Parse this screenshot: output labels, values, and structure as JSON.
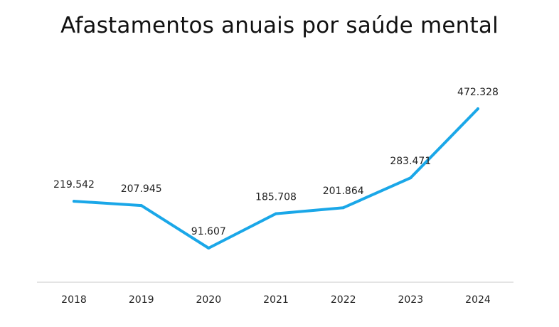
{
  "chart_data": {
    "type": "line",
    "title": "Afastamentos anuais por saúde mental",
    "xlabel": "",
    "ylabel": "",
    "categories": [
      "2018",
      "2019",
      "2020",
      "2021",
      "2022",
      "2023",
      "2024"
    ],
    "series": [
      {
        "values": [
          219542,
          207945,
          91607,
          185708,
          201864,
          283471,
          472328
        ],
        "labels": [
          "219.542",
          "207.945",
          "91.607",
          "185.708",
          "201.864",
          "283.471",
          "472.328"
        ],
        "color": "#1aa7e8"
      }
    ],
    "ylim": [
      0,
      500000
    ],
    "grid": false,
    "legend": "none",
    "axis_color": "#c8c8c8"
  }
}
